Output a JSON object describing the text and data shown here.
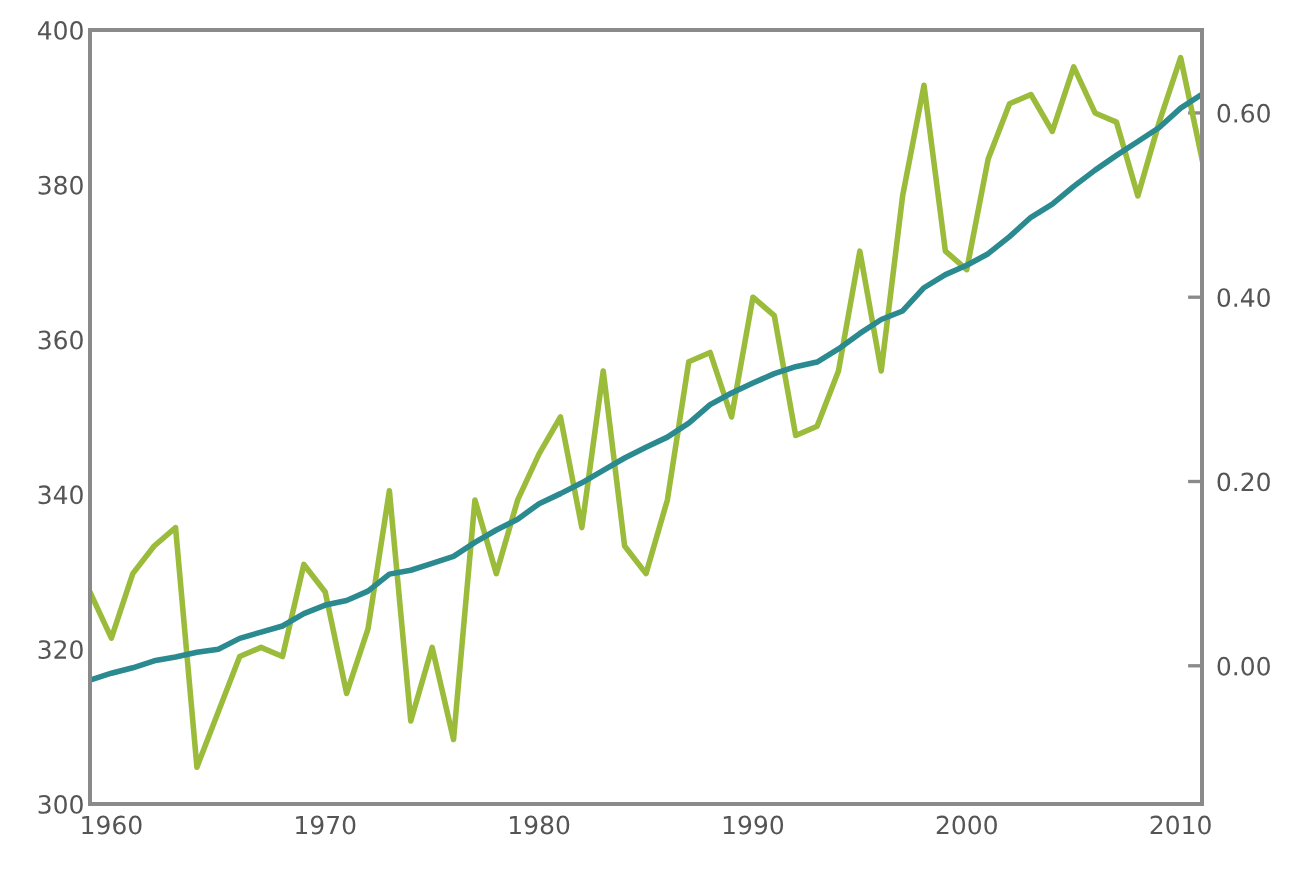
{
  "chart_data": {
    "type": "line",
    "x": [
      1959,
      1960,
      1961,
      1962,
      1963,
      1964,
      1965,
      1966,
      1967,
      1968,
      1969,
      1970,
      1971,
      1972,
      1973,
      1974,
      1975,
      1976,
      1977,
      1978,
      1979,
      1980,
      1981,
      1982,
      1983,
      1984,
      1985,
      1986,
      1987,
      1988,
      1989,
      1990,
      1991,
      1992,
      1993,
      1994,
      1995,
      1996,
      1997,
      1998,
      1999,
      2000,
      2001,
      2002,
      2003,
      2004,
      2005,
      2006,
      2007,
      2008,
      2009,
      2010,
      2011
    ],
    "series": [
      {
        "color": "#9bbb3a",
        "axis": "y2",
        "values": [
          0.08,
          0.03,
          0.1,
          0.13,
          0.15,
          -0.11,
          -0.05,
          0.01,
          0.02,
          0.01,
          0.11,
          0.08,
          -0.03,
          0.04,
          0.19,
          -0.06,
          0.02,
          -0.08,
          0.18,
          0.1,
          0.18,
          0.23,
          0.27,
          0.15,
          0.32,
          0.13,
          0.1,
          0.18,
          0.33,
          0.34,
          0.27,
          0.4,
          0.38,
          0.25,
          0.26,
          0.32,
          0.45,
          0.32,
          0.51,
          0.63,
          0.45,
          0.43,
          0.55,
          0.61,
          0.62,
          0.58,
          0.65,
          0.6,
          0.59,
          0.51,
          0.59,
          0.66,
          0.55
        ]
      },
      {
        "color": "#2a8a8f",
        "values": [
          316.0,
          316.9,
          317.6,
          318.5,
          319.0,
          319.6,
          320.0,
          321.4,
          322.2,
          323.0,
          324.6,
          325.7,
          326.3,
          327.5,
          329.7,
          330.2,
          331.1,
          332.0,
          333.8,
          335.4,
          336.8,
          338.8,
          340.1,
          341.5,
          343.1,
          344.7,
          346.1,
          347.4,
          349.2,
          351.6,
          353.1,
          354.4,
          355.6,
          356.5,
          357.1,
          358.8,
          360.8,
          362.6,
          363.7,
          366.7,
          368.4,
          369.6,
          371.1,
          373.3,
          375.8,
          377.5,
          379.8,
          381.9,
          383.8,
          385.6,
          387.4,
          389.9,
          391.7
        ]
      }
    ],
    "xlim": [
      1959,
      2011
    ],
    "xticks": [
      1960,
      1970,
      1980,
      1990,
      2000,
      2010
    ],
    "ylim": [
      300,
      400
    ],
    "yticks": [
      300,
      320,
      340,
      360,
      380,
      400
    ],
    "y2lim": [
      -0.15,
      0.69
    ],
    "y2ticks": [
      {
        "value": 0,
        "label": "0.00"
      },
      {
        "value": 0.2,
        "label": "0.20"
      },
      {
        "value": 0.4,
        "label": "0.40"
      },
      {
        "value": 0.6,
        "label": "0.60"
      }
    ],
    "marker": "none",
    "line_style": "solid"
  }
}
